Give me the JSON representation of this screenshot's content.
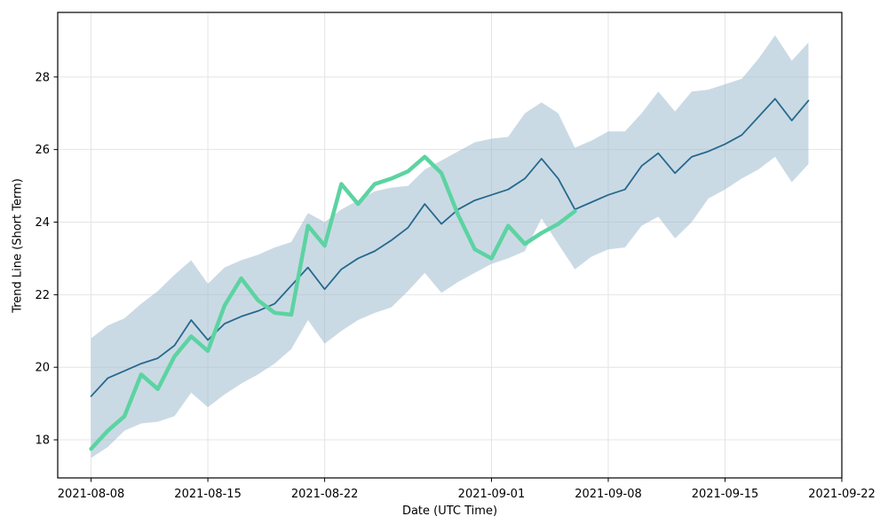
{
  "figure": {
    "background": "#ffffff",
    "spine_color": "#000000",
    "tick_color": "#000000"
  },
  "chart_data": {
    "type": "line",
    "title": "",
    "xlabel": "Date (UTC Time)",
    "ylabel": "Trend Line (Short Term)",
    "grid": true,
    "grid_color": "#e4e4e4",
    "legend_position": "none",
    "xlim": [
      "2021-08-06",
      "2021-09-22"
    ],
    "ylim": [
      16.95,
      29.78
    ],
    "x_ticks": [
      "2021-08-08",
      "2021-08-15",
      "2021-08-22",
      "2021-09-01",
      "2021-09-08",
      "2021-09-15",
      "2021-09-22"
    ],
    "y_ticks": [
      18,
      20,
      22,
      24,
      26,
      28
    ],
    "x_dates": [
      "2021-08-08",
      "2021-08-09",
      "2021-08-10",
      "2021-08-11",
      "2021-08-12",
      "2021-08-13",
      "2021-08-14",
      "2021-08-15",
      "2021-08-16",
      "2021-08-17",
      "2021-08-18",
      "2021-08-19",
      "2021-08-20",
      "2021-08-21",
      "2021-08-22",
      "2021-08-23",
      "2021-08-24",
      "2021-08-25",
      "2021-08-26",
      "2021-08-27",
      "2021-08-28",
      "2021-08-29",
      "2021-08-30",
      "2021-08-31",
      "2021-09-01",
      "2021-09-02",
      "2021-09-03",
      "2021-09-04",
      "2021-09-05",
      "2021-09-06",
      "2021-09-07",
      "2021-09-08",
      "2021-09-09",
      "2021-09-10",
      "2021-09-11",
      "2021-09-12",
      "2021-09-13",
      "2021-09-14",
      "2021-09-15",
      "2021-09-16",
      "2021-09-17",
      "2021-09-18",
      "2021-09-19",
      "2021-09-20"
    ],
    "series": [
      {
        "id": "dark-blue-trend-line",
        "color": "#26698e",
        "stroke_width": 1.8,
        "values": [
          19.2,
          19.7,
          19.9,
          20.1,
          20.25,
          20.6,
          21.3,
          20.75,
          21.2,
          21.4,
          21.55,
          21.75,
          22.25,
          22.75,
          22.15,
          22.7,
          23.0,
          23.2,
          23.5,
          23.85,
          24.5,
          23.95,
          24.35,
          24.6,
          24.75,
          24.9,
          25.2,
          25.75,
          25.2,
          24.35,
          24.55,
          24.75,
          24.9,
          25.55,
          25.9,
          25.35,
          25.8,
          25.95,
          26.15,
          26.4,
          26.9,
          27.4,
          26.8,
          27.35
        ]
      },
      {
        "id": "green-thick-line",
        "color": "#5cd3a2",
        "stroke_width": 4.5,
        "values": [
          17.75,
          18.25,
          18.65,
          19.8,
          19.4,
          20.3,
          20.85,
          20.45,
          21.7,
          22.45,
          21.85,
          21.5,
          21.45,
          23.9,
          23.35,
          25.05,
          24.5,
          25.05,
          25.2,
          25.4,
          25.8,
          25.35,
          24.2,
          23.25,
          23.0,
          23.9,
          23.4,
          23.7,
          23.95,
          24.3,
          null,
          null,
          null,
          null,
          null,
          null,
          null,
          null,
          null,
          null,
          null,
          null,
          null,
          null
        ]
      }
    ],
    "band": {
      "id": "confidence-band",
      "color": "#9fbccd",
      "opacity": 0.55,
      "upper": [
        20.8,
        21.15,
        21.35,
        21.75,
        22.1,
        22.55,
        22.95,
        22.3,
        22.75,
        22.95,
        23.1,
        23.3,
        23.45,
        24.25,
        24.0,
        24.35,
        24.6,
        24.85,
        24.95,
        25.0,
        25.45,
        25.7,
        25.95,
        26.2,
        26.3,
        26.35,
        27.0,
        27.3,
        27.0,
        26.05,
        26.25,
        26.5,
        26.5,
        27.0,
        27.6,
        27.05,
        27.6,
        27.65,
        27.8,
        27.95,
        28.5,
        29.15,
        28.45,
        28.95
      ],
      "lower": [
        17.5,
        17.8,
        18.25,
        18.45,
        18.5,
        18.65,
        19.3,
        18.9,
        19.25,
        19.55,
        19.8,
        20.1,
        20.5,
        21.3,
        20.65,
        21.0,
        21.3,
        21.5,
        21.65,
        22.1,
        22.6,
        22.05,
        22.35,
        22.6,
        22.85,
        23.0,
        23.2,
        24.1,
        23.4,
        22.7,
        23.05,
        23.25,
        23.3,
        23.9,
        24.15,
        23.55,
        24.0,
        24.65,
        24.9,
        25.2,
        25.45,
        25.8,
        25.1,
        25.6
      ]
    }
  }
}
